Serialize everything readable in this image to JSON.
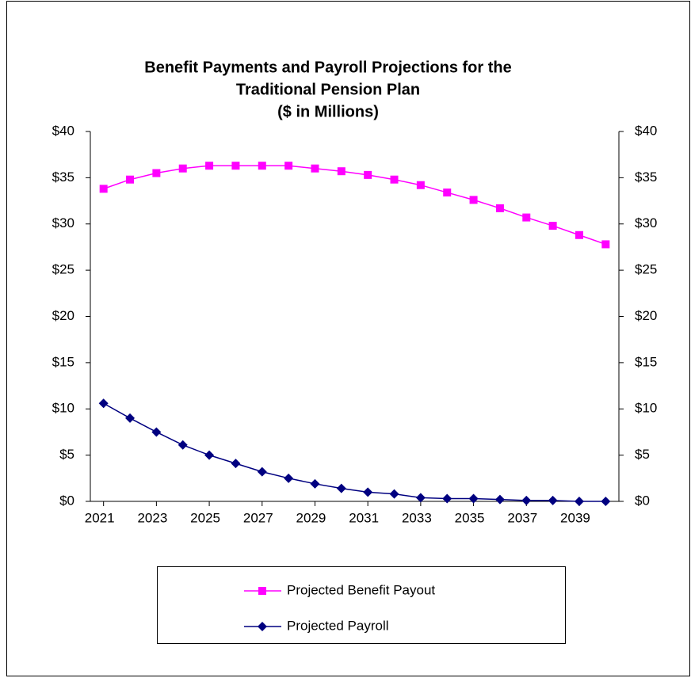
{
  "chart_data": {
    "type": "line",
    "title": [
      "Benefit Payments and Payroll Projections for the",
      "Traditional Pension Plan",
      "($ in Millions)"
    ],
    "x": [
      2021,
      2022,
      2023,
      2024,
      2025,
      2026,
      2027,
      2028,
      2029,
      2030,
      2031,
      2032,
      2033,
      2034,
      2035,
      2036,
      2037,
      2038,
      2039,
      2040
    ],
    "xlim": [
      2020.5,
      2040.5
    ],
    "xticks": [
      2021,
      2023,
      2025,
      2027,
      2029,
      2031,
      2033,
      2035,
      2037,
      2039
    ],
    "ylim": [
      0,
      40
    ],
    "yticks": [
      {
        "value": 0,
        "label": "$0"
      },
      {
        "value": 5,
        "label": "$5"
      },
      {
        "value": 10,
        "label": "$10"
      },
      {
        "value": 15,
        "label": "$15"
      },
      {
        "value": 20,
        "label": "$20"
      },
      {
        "value": 25,
        "label": "$25"
      },
      {
        "value": 30,
        "label": "$30"
      },
      {
        "value": 35,
        "label": "$35"
      },
      {
        "value": 40,
        "label": "$40"
      }
    ],
    "y2lim": [
      0,
      40
    ],
    "y2ticks": [
      {
        "value": 0,
        "label": "$0"
      },
      {
        "value": 5,
        "label": "$5"
      },
      {
        "value": 10,
        "label": "$10"
      },
      {
        "value": 15,
        "label": "$15"
      },
      {
        "value": 20,
        "label": "$20"
      },
      {
        "value": 25,
        "label": "$25"
      },
      {
        "value": 30,
        "label": "$30"
      },
      {
        "value": 35,
        "label": "$35"
      },
      {
        "value": 40,
        "label": "$40"
      }
    ],
    "legend": "bottom",
    "series": [
      {
        "name": "Projected Benefit Payout",
        "color": "#ff00ff",
        "marker": "square",
        "values": [
          33.8,
          34.8,
          35.5,
          36.0,
          36.3,
          36.3,
          36.3,
          36.3,
          36.0,
          35.7,
          35.3,
          34.8,
          34.2,
          33.4,
          32.6,
          31.7,
          30.7,
          29.8,
          28.8,
          27.8
        ]
      },
      {
        "name": "Projected Payroll",
        "color": "#000080",
        "marker": "diamond",
        "values": [
          10.6,
          9.0,
          7.5,
          6.1,
          5.0,
          4.1,
          3.2,
          2.5,
          1.9,
          1.4,
          1.0,
          0.8,
          0.4,
          0.3,
          0.3,
          0.2,
          0.1,
          0.1,
          0.0,
          0.0
        ]
      }
    ]
  }
}
